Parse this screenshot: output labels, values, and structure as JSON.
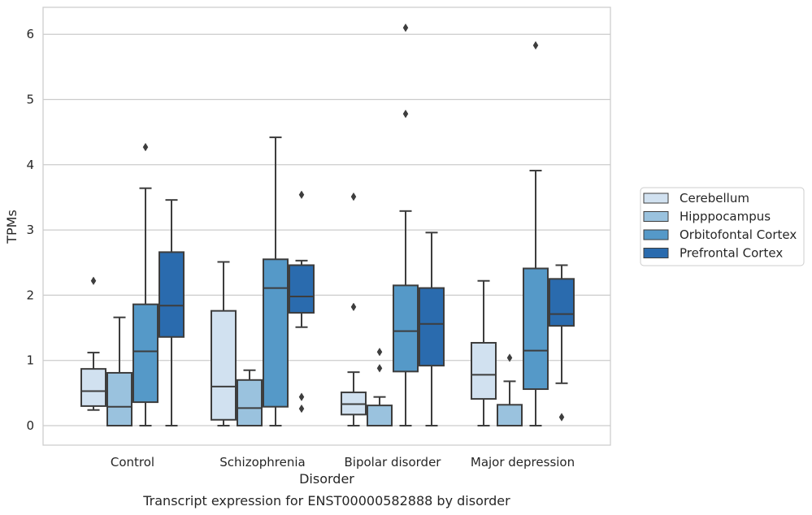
{
  "chart_data": {
    "type": "box",
    "title": "",
    "caption": "Transcript expression for ENST00000582888 by disorder",
    "xlabel": "Disorder",
    "ylabel": "TPMs",
    "ylim": [
      -0.3,
      6.4
    ],
    "yticks": [
      0,
      1,
      2,
      3,
      4,
      5,
      6
    ],
    "grid": "horizontal",
    "legend_position": "right",
    "categories": [
      "Control",
      "Schizophrenia",
      "Bipolar disorder",
      "Major depression"
    ],
    "series": [
      {
        "name": "Cerebellum",
        "color": "#d1e1f0",
        "boxes": [
          {
            "whislo": 0.24,
            "q1": 0.3,
            "med": 0.53,
            "q3": 0.87,
            "whishi": 1.12,
            "fliers": [
              2.22
            ]
          },
          {
            "whislo": 0.0,
            "q1": 0.09,
            "med": 0.6,
            "q3": 1.76,
            "whishi": 2.51,
            "fliers": []
          },
          {
            "whislo": 0.0,
            "q1": 0.17,
            "med": 0.33,
            "q3": 0.51,
            "whishi": 0.82,
            "fliers": [
              1.82,
              3.51
            ]
          },
          {
            "whislo": 0.0,
            "q1": 0.41,
            "med": 0.78,
            "q3": 1.27,
            "whishi": 2.22,
            "fliers": []
          }
        ]
      },
      {
        "name": "Hipppocampus",
        "color": "#9ac2de",
        "boxes": [
          {
            "whislo": 0.0,
            "q1": 0.0,
            "med": 0.29,
            "q3": 0.81,
            "whishi": 1.66,
            "fliers": []
          },
          {
            "whislo": 0.0,
            "q1": 0.0,
            "med": 0.27,
            "q3": 0.7,
            "whishi": 0.85,
            "fliers": []
          },
          {
            "whislo": 0.0,
            "q1": 0.0,
            "med": 0.0,
            "q3": 0.31,
            "whishi": 0.44,
            "fliers": [
              0.88,
              1.13
            ]
          },
          {
            "whislo": 0.0,
            "q1": 0.0,
            "med": 0.0,
            "q3": 0.32,
            "whishi": 0.68,
            "fliers": [
              1.04
            ]
          }
        ]
      },
      {
        "name": "Orbitofontal Cortex",
        "color": "#5599c8",
        "boxes": [
          {
            "whislo": 0.0,
            "q1": 0.36,
            "med": 1.14,
            "q3": 1.86,
            "whishi": 3.64,
            "fliers": [
              4.27
            ]
          },
          {
            "whislo": 0.0,
            "q1": 0.29,
            "med": 2.11,
            "q3": 2.55,
            "whishi": 4.42,
            "fliers": []
          },
          {
            "whislo": 0.0,
            "q1": 0.83,
            "med": 1.45,
            "q3": 2.15,
            "whishi": 3.29,
            "fliers": [
              4.78,
              6.1
            ]
          },
          {
            "whislo": 0.0,
            "q1": 0.56,
            "med": 1.15,
            "q3": 2.41,
            "whishi": 3.91,
            "fliers": [
              5.83
            ]
          }
        ]
      },
      {
        "name": "Prefrontal Cortex",
        "color": "#2a6bae",
        "boxes": [
          {
            "whislo": 0.0,
            "q1": 1.36,
            "med": 1.84,
            "q3": 2.66,
            "whishi": 3.46,
            "fliers": []
          },
          {
            "whislo": 1.51,
            "q1": 1.73,
            "med": 1.98,
            "q3": 2.46,
            "whishi": 2.53,
            "fliers": [
              0.26,
              0.44,
              3.54
            ]
          },
          {
            "whislo": 0.0,
            "q1": 0.92,
            "med": 1.56,
            "q3": 2.11,
            "whishi": 2.96,
            "fliers": []
          },
          {
            "whislo": 0.65,
            "q1": 1.53,
            "med": 1.71,
            "q3": 2.25,
            "whishi": 2.46,
            "fliers": [
              0.13
            ]
          }
        ]
      }
    ]
  }
}
